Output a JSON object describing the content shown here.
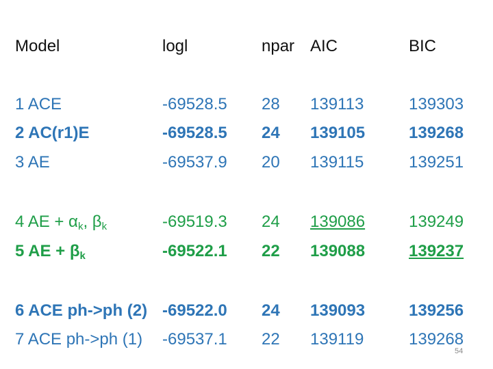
{
  "table": {
    "header": [
      "Model",
      "logl",
      "npar",
      "AIC",
      "BIC"
    ],
    "rows": [
      [
        [
          "1 ACE"
        ],
        "-69528.5",
        "28",
        "139113",
        "139303"
      ],
      [
        [
          "2 AC(r1)E"
        ],
        "-69528.5",
        "24",
        "139105",
        "139268"
      ],
      [
        [
          "3 AE"
        ],
        "-69537.9",
        "20",
        "139115",
        "139251"
      ],
      [
        [
          "4 AE + α",
          "k",
          ", β",
          "k"
        ],
        "-69519.3",
        "24",
        "139086",
        "139249"
      ],
      [
        [
          "5 AE + β",
          "k"
        ],
        "-69522.1",
        "22",
        "139088",
        "139237"
      ],
      [
        [
          "6 ACE ph->ph (2)"
        ],
        "-69522.0",
        "24",
        "139093",
        "139256"
      ],
      [
        [
          "7 ACE ph->ph (1)"
        ],
        "-69537.1",
        "22",
        "139119",
        "139268"
      ]
    ]
  },
  "page_number": "54"
}
